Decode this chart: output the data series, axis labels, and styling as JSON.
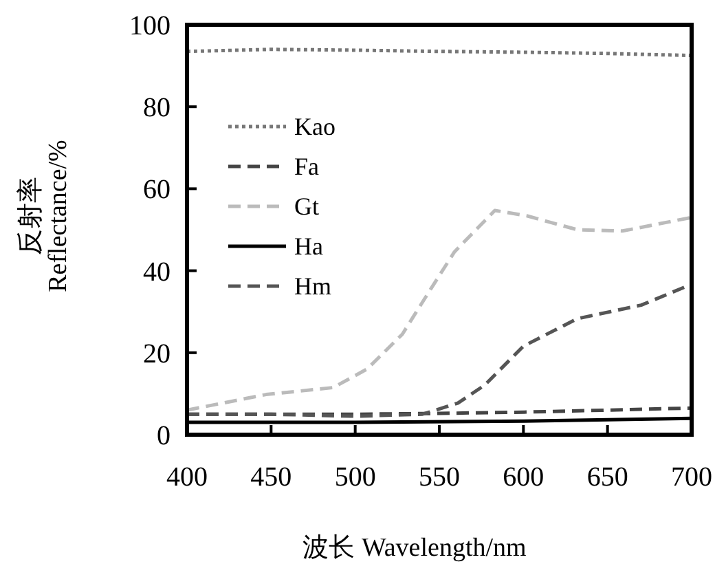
{
  "chart_data": {
    "type": "line",
    "xlabel": "波长 Wavelength/nm",
    "ylabel": "反射率\nReflectance/%",
    "xlim": [
      400,
      700
    ],
    "ylim": [
      0,
      100
    ],
    "xticks": [
      400,
      450,
      500,
      550,
      600,
      650,
      700
    ],
    "yticks": [
      0,
      20,
      40,
      60,
      80,
      100
    ],
    "grid": false,
    "legend": "left",
    "marker": "none",
    "series": [
      {
        "name": "Kao",
        "color": "#777777",
        "line_style": "dotted",
        "x": [
          400,
          450,
          500,
          550,
          600,
          650,
          700
        ],
        "values": [
          93.5,
          94,
          93.8,
          93.5,
          93.3,
          93,
          92.5
        ]
      },
      {
        "name": "Fa",
        "color": "#444444",
        "line_style": "dashed",
        "x": [
          400,
          450,
          500,
          550,
          600,
          650,
          700
        ],
        "values": [
          5,
          5,
          5,
          5.2,
          5.5,
          6,
          6.5
        ]
      },
      {
        "name": "Gt",
        "color": "#bbbbbb",
        "line_style": "dashed",
        "x": [
          400,
          447,
          487,
          507,
          528,
          545,
          559,
          583,
          602,
          632,
          659,
          700
        ],
        "values": [
          6,
          9.8,
          11.5,
          16,
          24.5,
          35.6,
          44.6,
          54.7,
          53.4,
          50,
          49.7,
          53
        ]
      },
      {
        "name": "Ha",
        "color": "#000000",
        "line_style": "solid",
        "x": [
          400,
          500,
          600,
          700
        ],
        "values": [
          3,
          3,
          3.3,
          4
        ]
      },
      {
        "name": "Hm",
        "color": "#555555",
        "line_style": "dashed",
        "x": [
          400,
          450,
          500,
          540,
          561,
          577,
          600,
          632,
          670,
          700
        ],
        "values": [
          5,
          5,
          4.5,
          5,
          7.7,
          12.1,
          21.6,
          28.3,
          31.6,
          36.7
        ]
      }
    ]
  }
}
